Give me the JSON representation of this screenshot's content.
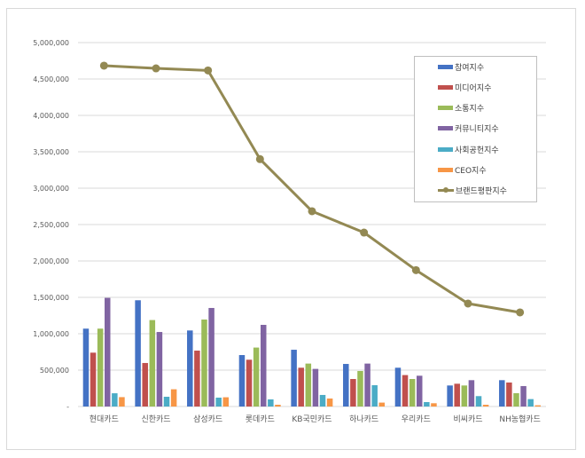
{
  "chart_data": {
    "type": "bar+line",
    "title": "",
    "xlabel": "",
    "ylabel": "",
    "ylim": [
      0,
      5000000
    ],
    "yticks": [
      0,
      500000,
      1000000,
      1500000,
      2000000,
      2500000,
      3000000,
      3500000,
      4000000,
      4500000,
      5000000
    ],
    "ytick_labels": [
      "-",
      "500,000",
      "1,000,000",
      "1,500,000",
      "2,000,000",
      "2,500,000",
      "3,000,000",
      "3,500,000",
      "4,000,000",
      "4,500,000",
      "5,000,000"
    ],
    "grid": true,
    "legend_position": "upper right (inside)",
    "categories": [
      "현대카드",
      "신한카드",
      "삼성카드",
      "롯데카드",
      "KB국민카드",
      "하나카드",
      "우리카드",
      "비씨카드",
      "NH농협카드"
    ],
    "series": [
      {
        "name": "참여지수",
        "type": "bar",
        "color": "#4472c4",
        "values": [
          1070000,
          1460000,
          1045000,
          707000,
          780000,
          585000,
          533000,
          289000,
          362000
        ]
      },
      {
        "name": "미디어지수",
        "type": "bar",
        "color": "#c0504d",
        "values": [
          740000,
          598000,
          768000,
          643000,
          533000,
          378000,
          432000,
          313000,
          330000
        ]
      },
      {
        "name": "소통지수",
        "type": "bar",
        "color": "#9bbb59",
        "values": [
          1070000,
          1188000,
          1195000,
          810000,
          590000,
          488000,
          378000,
          289000,
          183000
        ]
      },
      {
        "name": "커뮤니티지수",
        "type": "bar",
        "color": "#8064a2",
        "values": [
          1493000,
          1024000,
          1354000,
          1122000,
          517000,
          590000,
          423000,
          362000,
          281000
        ]
      },
      {
        "name": "사회공헌지수",
        "type": "bar",
        "color": "#4bacc6",
        "values": [
          182000,
          134000,
          122000,
          98000,
          159000,
          293000,
          61000,
          143000,
          102000
        ]
      },
      {
        "name": "CEO지수",
        "type": "bar",
        "color": "#f79646",
        "values": [
          129000,
          237000,
          127000,
          24000,
          110000,
          54000,
          45000,
          24000,
          17000
        ]
      },
      {
        "name": "브랜드평판지수",
        "type": "line",
        "color": "#938953",
        "values": [
          4683000,
          4646000,
          4618000,
          3399000,
          2683000,
          2390000,
          1874000,
          1415000,
          1293000
        ]
      }
    ]
  },
  "legend": {
    "items": [
      {
        "label": "참여지수",
        "color": "#4472c4",
        "kind": "bar"
      },
      {
        "label": "미디어지수",
        "color": "#c0504d",
        "kind": "bar"
      },
      {
        "label": "소통지수",
        "color": "#9bbb59",
        "kind": "bar"
      },
      {
        "label": "커뮤니티지수",
        "color": "#8064a2",
        "kind": "bar"
      },
      {
        "label": "사회공헌지수",
        "color": "#4bacc6",
        "kind": "bar"
      },
      {
        "label": "CEO지수",
        "color": "#f79646",
        "kind": "bar"
      },
      {
        "label": "브랜드평판지수",
        "color": "#938953",
        "kind": "line"
      }
    ]
  }
}
